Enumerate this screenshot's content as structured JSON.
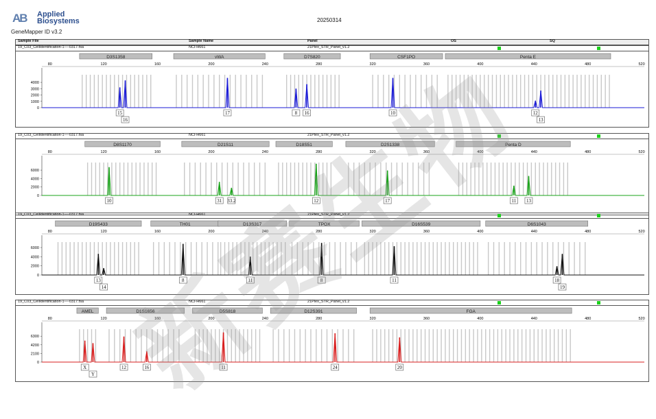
{
  "header": {
    "logo_mark": "AB",
    "brand_line1": "Applied",
    "brand_line2": "Biosystems",
    "software": "GeneMapper ID v3.2",
    "date": "20250314",
    "columns": [
      "Sample File",
      "Sample Name",
      "Panel",
      "OS",
      "SQ"
    ]
  },
  "watermark": "新赛生物",
  "chart_data": [
    {
      "type": "line",
      "sample_file": "19_C03_CellIdentification-1----0317.fsa",
      "sample_name": "NCI-H661",
      "panel": "21Plex_STR_Panel_v1.2",
      "color": "#1a1ad6",
      "x_ticks": [
        80,
        120,
        160,
        200,
        240,
        280,
        320,
        360,
        400,
        440,
        480,
        520
      ],
      "y_ticks": [
        "0",
        "1000",
        "2000",
        "3000",
        "4000"
      ],
      "ylim": [
        0,
        5200
      ],
      "markers": [
        {
          "label": "D3S1358",
          "start": 102,
          "end": 156
        },
        {
          "label": "vWA",
          "start": 172,
          "end": 240
        },
        {
          "label": "D7S820",
          "start": 254,
          "end": 296
        },
        {
          "label": "CSF1PO",
          "start": 318,
          "end": 372
        },
        {
          "label": "Penta E",
          "start": 374,
          "end": 497
        }
      ],
      "peaks": [
        {
          "x": 132,
          "h": 3200,
          "label": "15"
        },
        {
          "x": 136,
          "h": 4300,
          "label": "16"
        },
        {
          "x": 212,
          "h": 4700,
          "label": "17"
        },
        {
          "x": 263,
          "h": 3000,
          "label": "8"
        },
        {
          "x": 271,
          "h": 3700,
          "label": "16"
        },
        {
          "x": 335,
          "h": 4700,
          "label": "10"
        },
        {
          "x": 441,
          "h": 1100,
          "label": "12"
        },
        {
          "x": 445,
          "h": 2700,
          "label": "13"
        }
      ]
    },
    {
      "type": "line",
      "sample_file": "19_C03_CellIdentification-1----0317.fsa",
      "sample_name": "NCI-H661",
      "panel": "21Plex_STR_Panel_v1.2",
      "color": "#1aa31a",
      "x_ticks": [
        80,
        120,
        160,
        200,
        240,
        280,
        320,
        360,
        400,
        440,
        480,
        520
      ],
      "y_ticks": [
        "0",
        "2000",
        "4000",
        "6000"
      ],
      "ylim": [
        0,
        7800
      ],
      "markers": [
        {
          "label": "D8S1170",
          "start": 106,
          "end": 162
        },
        {
          "label": "D21S11",
          "start": 178,
          "end": 243
        },
        {
          "label": "D18S51",
          "start": 248,
          "end": 290
        },
        {
          "label": "D2S1338",
          "start": 300,
          "end": 366
        },
        {
          "label": "Penta D",
          "start": 382,
          "end": 467
        }
      ],
      "peaks": [
        {
          "x": 124,
          "h": 6700,
          "label": "10"
        },
        {
          "x": 206,
          "h": 3200,
          "label": "31"
        },
        {
          "x": 215,
          "h": 1800,
          "label": "33.2"
        },
        {
          "x": 278,
          "h": 7500,
          "label": "12"
        },
        {
          "x": 331,
          "h": 5900,
          "label": "17"
        },
        {
          "x": 425,
          "h": 2300,
          "label": "11"
        },
        {
          "x": 436,
          "h": 4600,
          "label": "13"
        }
      ]
    },
    {
      "type": "line",
      "sample_file": "19_C03_CellIdentification-1----0317.fsa",
      "sample_name": "NCI-H661",
      "panel": "21Plex_STR_Panel_v1.2",
      "color": "#111111",
      "x_ticks": [
        80,
        120,
        160,
        200,
        240,
        280,
        320,
        360,
        400,
        440,
        480,
        520
      ],
      "y_ticks": [
        "0",
        "2000",
        "4000",
        "6000"
      ],
      "ylim": [
        0,
        7200
      ],
      "markers": [
        {
          "label": "D19S433",
          "start": 84,
          "end": 148
        },
        {
          "label": "TH01",
          "start": 155,
          "end": 206
        },
        {
          "label": "D13S317",
          "start": 205,
          "end": 256
        },
        {
          "label": "TPOX",
          "start": 258,
          "end": 310
        },
        {
          "label": "D16S539",
          "start": 312,
          "end": 400
        },
        {
          "label": "D6S1043",
          "start": 404,
          "end": 480
        }
      ],
      "peaks": [
        {
          "x": 116,
          "h": 4600,
          "label": "13"
        },
        {
          "x": 120,
          "h": 1500,
          "label": "14"
        },
        {
          "x": 179,
          "h": 6800,
          "label": "8"
        },
        {
          "x": 229,
          "h": 4000,
          "label": "11"
        },
        {
          "x": 282,
          "h": 7000,
          "label": "8"
        },
        {
          "x": 336,
          "h": 6300,
          "label": "11"
        },
        {
          "x": 457,
          "h": 1900,
          "label": "18"
        },
        {
          "x": 461,
          "h": 4600,
          "label": "19"
        }
      ]
    },
    {
      "type": "line",
      "sample_file": "19_C03_CellIdentification-1----0317.fsa",
      "sample_name": "NCI-H661",
      "panel": "21Plex_STR_Panel_v1.2",
      "color": "#d81e1e",
      "x_ticks": [
        80,
        120,
        160,
        200,
        240,
        280,
        320,
        360,
        400,
        440,
        480,
        520
      ],
      "y_ticks": [
        "0",
        "2100",
        "4200",
        "6300"
      ],
      "ylim": [
        0,
        8000
      ],
      "markers": [
        {
          "label": "AMEL",
          "start": 100,
          "end": 116
        },
        {
          "label": "D1S1656",
          "start": 122,
          "end": 180
        },
        {
          "label": "D5S818",
          "start": 186,
          "end": 238
        },
        {
          "label": "D12S391",
          "start": 244,
          "end": 308
        },
        {
          "label": "FGA",
          "start": 318,
          "end": 468
        }
      ],
      "peaks": [
        {
          "x": 106,
          "h": 5200,
          "label": "X"
        },
        {
          "x": 112,
          "h": 4600,
          "label": "Y"
        },
        {
          "x": 135,
          "h": 6200,
          "label": "12"
        },
        {
          "x": 152,
          "h": 2600,
          "label": "16"
        },
        {
          "x": 209,
          "h": 7200,
          "label": "11"
        },
        {
          "x": 292,
          "h": 7000,
          "label": "24"
        },
        {
          "x": 340,
          "h": 6000,
          "label": "20"
        }
      ]
    }
  ]
}
